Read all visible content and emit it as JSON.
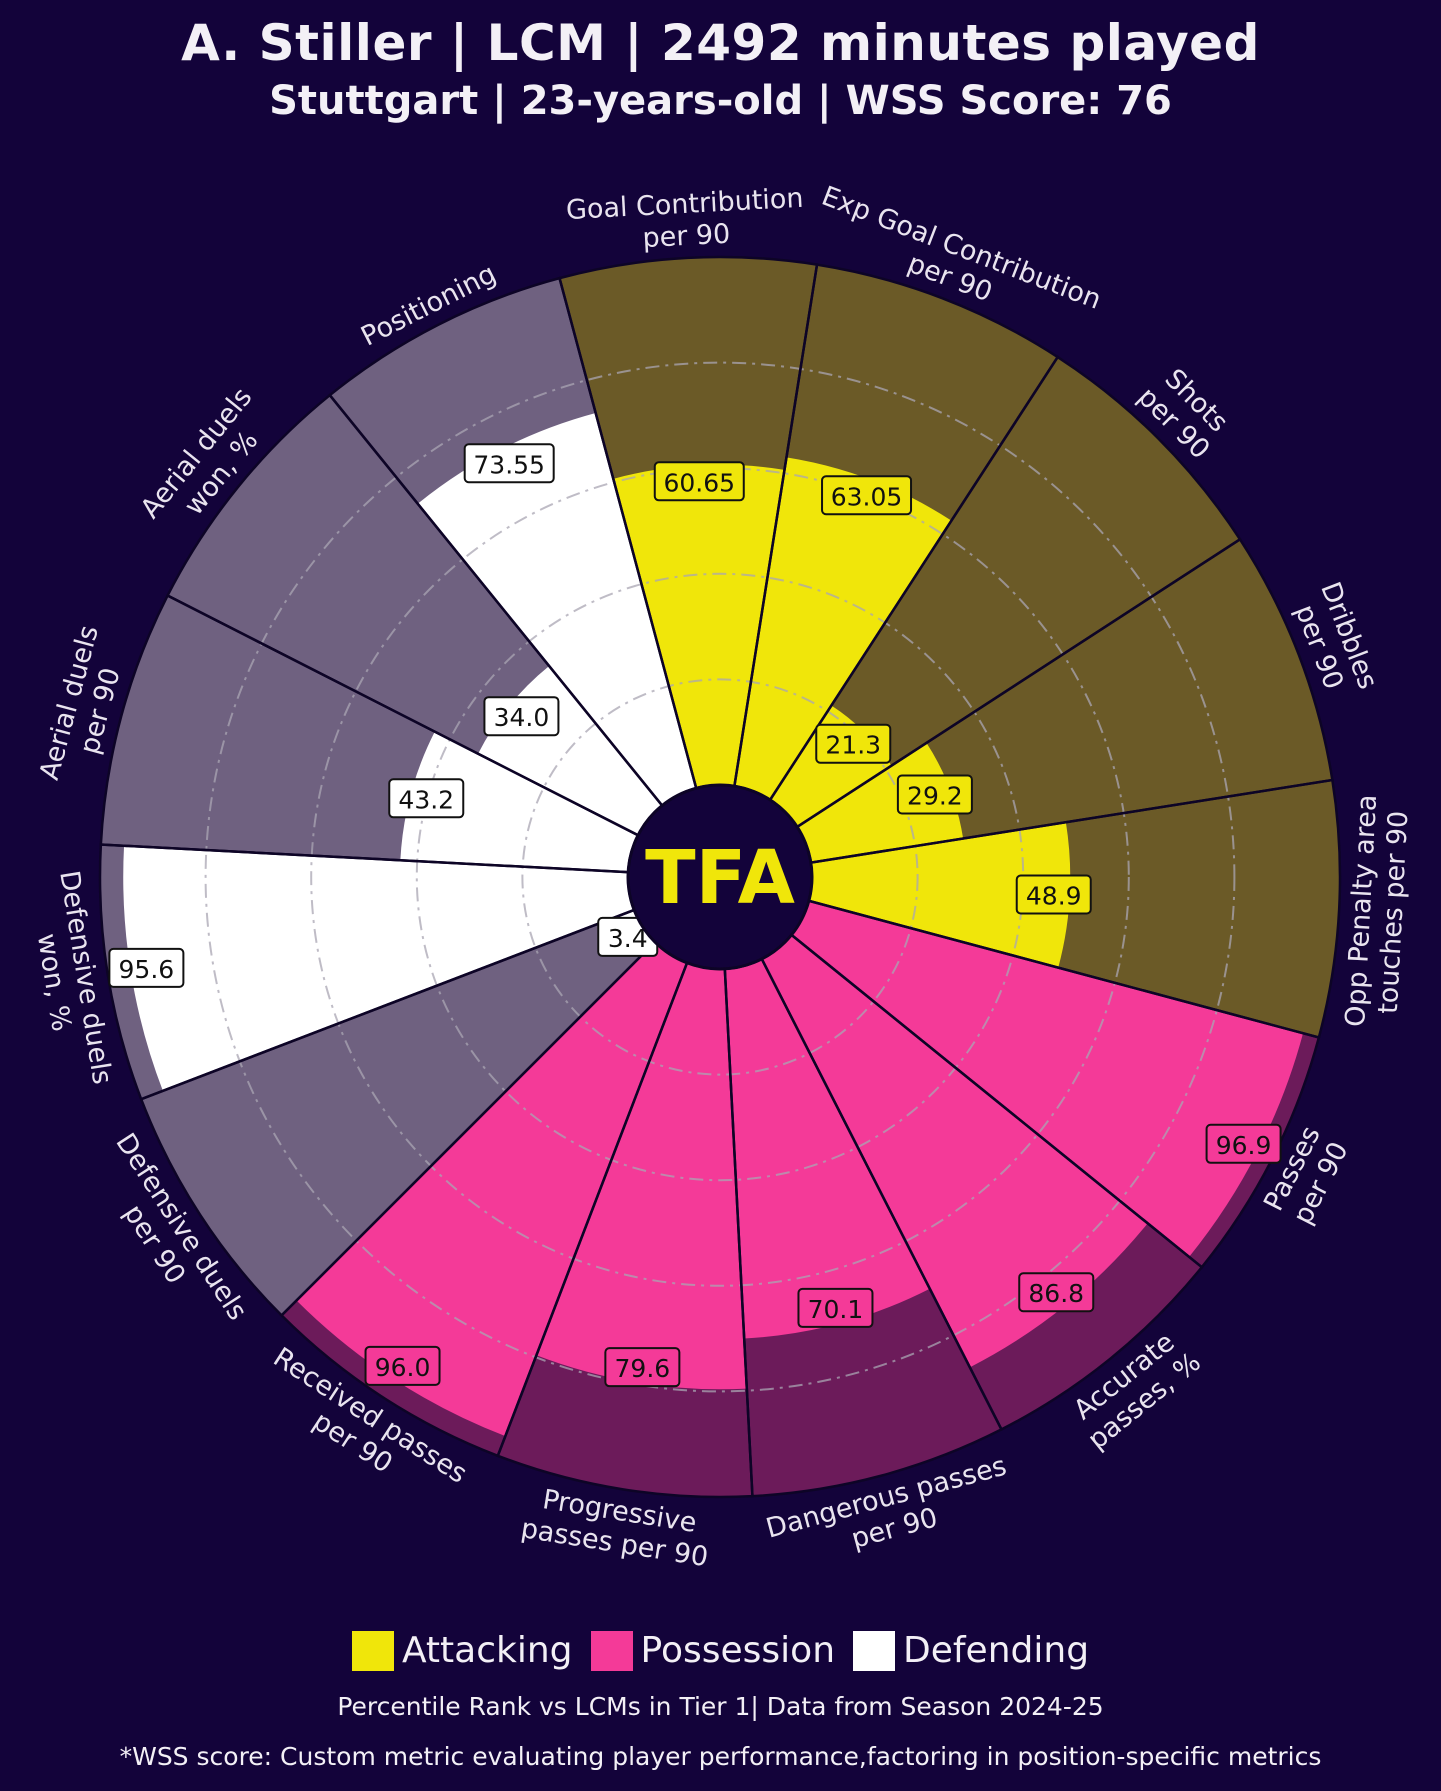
{
  "header": {
    "title": "A. Stiller | LCM | 2492 minutes played",
    "subtitle": "Stuttgart | 23-years-old | WSS Score: 76"
  },
  "logo_text": "TFA",
  "colors": {
    "background": "#13033a",
    "attacking": "#f0e60a",
    "attacking_bg": "#6b5a27",
    "possession": "#f43a98",
    "possession_bg": "#6c1b5a",
    "defending": "#ffffff",
    "defending_bg": "#6f6180"
  },
  "legend": [
    {
      "label": "Attacking",
      "color": "#f0e60a"
    },
    {
      "label": "Possession",
      "color": "#f43a98"
    },
    {
      "label": "Defending",
      "color": "#ffffff"
    }
  ],
  "footnote_1": "Percentile Rank vs LCMs in Tier 1| Data from Season 2024-25",
  "footnote_2": "*WSS score: Custom metric evaluating player performance,factoring in position-specific metrics",
  "chart_data": {
    "type": "radar",
    "scale": [
      0,
      100
    ],
    "categories": [
      {
        "label": [
          "Goal Contribution",
          "per 90"
        ],
        "value": 60.65,
        "label_text": "60.65",
        "group": "Attacking"
      },
      {
        "label": [
          "Exp Goal Contribution",
          "per 90"
        ],
        "value": 63.05,
        "label_text": "63.05",
        "group": "Attacking"
      },
      {
        "label": [
          "Shots",
          "per 90"
        ],
        "value": 21.3,
        "label_text": "21.3",
        "group": "Attacking"
      },
      {
        "label": [
          "Dribbles",
          "per 90"
        ],
        "value": 29.2,
        "label_text": "29.2",
        "group": "Attacking"
      },
      {
        "label": [
          "Opp Penalty area",
          "touches per 90"
        ],
        "value": 48.9,
        "label_text": "48.9",
        "group": "Attacking"
      },
      {
        "label": [
          "Passes",
          "per 90"
        ],
        "value": 96.9,
        "label_text": "96.9",
        "group": "Possession"
      },
      {
        "label": [
          "Accurate",
          "passes, %"
        ],
        "value": 86.8,
        "label_text": "86.8",
        "group": "Possession"
      },
      {
        "label": [
          "Dangerous passes",
          "per 90"
        ],
        "value": 70.1,
        "label_text": "70.1",
        "group": "Possession"
      },
      {
        "label": [
          "Progressive",
          "passes per 90"
        ],
        "value": 79.6,
        "label_text": "79.6",
        "group": "Possession"
      },
      {
        "label": [
          "Received passes",
          "per 90"
        ],
        "value": 96.0,
        "label_text": "96.0",
        "group": "Possession"
      },
      {
        "label": [
          "Defensive duels",
          "per 90"
        ],
        "value": 3.4,
        "label_text": "3.4",
        "group": "Defending"
      },
      {
        "label": [
          "Defensive duels",
          "won, %"
        ],
        "value": 95.6,
        "label_text": "95.6",
        "group": "Defending"
      },
      {
        "label": [
          "Aerial duels",
          "per 90"
        ],
        "value": 43.2,
        "label_text": "43.2",
        "group": "Defending"
      },
      {
        "label": [
          "Aerial duels",
          "won, %"
        ],
        "value": 34.0,
        "label_text": "34.0",
        "group": "Defending"
      },
      {
        "label": [
          "Positioning"
        ],
        "value": 73.55,
        "label_text": "73.55",
        "group": "Defending"
      }
    ]
  }
}
